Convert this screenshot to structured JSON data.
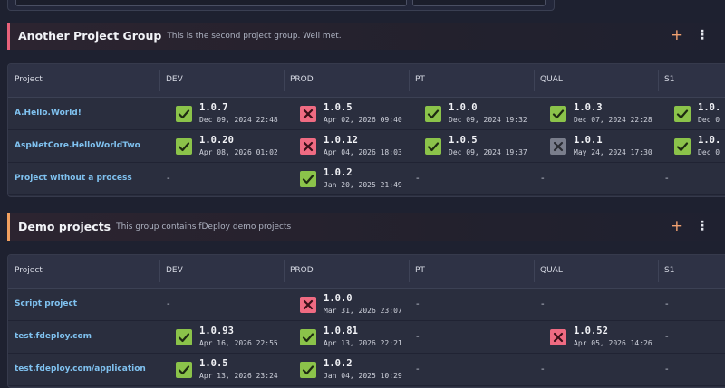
{
  "groups": [
    {
      "title": "Another Project Group",
      "description": "This is the second project group. Well met.",
      "accent": "#e8617a",
      "add": "+",
      "menu": "⋮",
      "columns": [
        "Project",
        "DEV",
        "PROD",
        "PT",
        "QUAL",
        "S1"
      ],
      "rows": [
        {
          "project": "A.Hello.World!",
          "cells": [
            {
              "version": "1.0.7",
              "date": "Dec 09, 2024 22:48",
              "status": "success"
            },
            {
              "version": "1.0.5",
              "date": "Apr 02, 2026 09:40",
              "status": "failed"
            },
            {
              "version": "1.0.0",
              "date": "Dec 09, 2024 19:32",
              "status": "success"
            },
            {
              "version": "1.0.3",
              "date": "Dec 07, 2024 22:28",
              "status": "success"
            },
            {
              "version": "1.0.",
              "date": "Dec 0",
              "status": "success"
            }
          ]
        },
        {
          "project": "AspNetCore.HelloWorldTwo",
          "cells": [
            {
              "version": "1.0.20",
              "date": "Apr 08, 2026 01:02",
              "status": "success"
            },
            {
              "version": "1.0.12",
              "date": "Apr 04, 2026 18:03",
              "status": "failed"
            },
            {
              "version": "1.0.5",
              "date": "Dec 09, 2024 19:37",
              "status": "success"
            },
            {
              "version": "1.0.1",
              "date": "May 24, 2024 17:30",
              "status": "cancelled"
            },
            {
              "version": "1.0.",
              "date": "Dec 0",
              "status": "success"
            }
          ]
        },
        {
          "project": "Project without a process",
          "cells": [
            {
              "text": "-"
            },
            {
              "version": "1.0.2",
              "date": "Jan 20, 2025 21:49",
              "status": "success"
            },
            {
              "text": "-"
            },
            {
              "text": "-"
            },
            {
              "text": "-"
            }
          ]
        }
      ]
    },
    {
      "title": "Demo projects",
      "description": "This group contains fDeploy demo projects",
      "accent": "#f0a060",
      "add": "+",
      "menu": "⋮",
      "columns": [
        "Project",
        "DEV",
        "PROD",
        "PT",
        "QUAL",
        "S1"
      ],
      "rows": [
        {
          "project": "Script project",
          "cells": [
            {
              "text": "-"
            },
            {
              "version": "1.0.0",
              "date": "Mar 31, 2026 23:07",
              "status": "failed"
            },
            {
              "text": "-"
            },
            {
              "text": "-"
            },
            {
              "text": "-"
            }
          ]
        },
        {
          "project": "test.fdeploy.com",
          "cells": [
            {
              "version": "1.0.93",
              "date": "Apr 16, 2026 22:55",
              "status": "success"
            },
            {
              "version": "1.0.81",
              "date": "Apr 13, 2026 22:21",
              "status": "success"
            },
            {
              "text": "-"
            },
            {
              "version": "1.0.52",
              "date": "Apr 05, 2026 14:26",
              "status": "failed"
            },
            {
              "text": "-"
            }
          ]
        },
        {
          "project": "test.fdeploy.com/application",
          "cells": [
            {
              "version": "1.0.5",
              "date": "Apr 13, 2026 23:24",
              "status": "success"
            },
            {
              "version": "1.0.2",
              "date": "Jan 04, 2025 10:29",
              "status": "success"
            },
            {
              "text": "-"
            },
            {
              "text": "-"
            },
            {
              "text": "-"
            }
          ]
        }
      ]
    }
  ]
}
